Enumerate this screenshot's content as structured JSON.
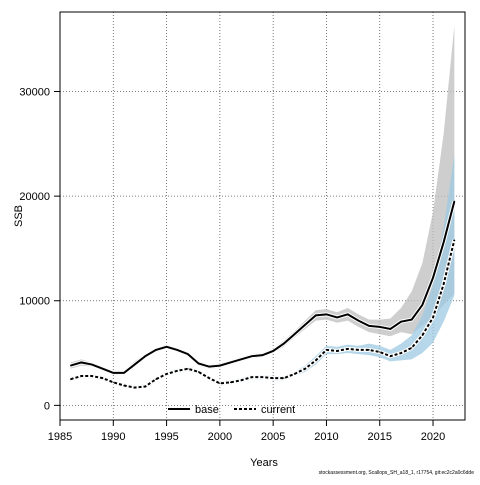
{
  "chart_data": {
    "type": "line",
    "xlabel": "Years",
    "ylabel": "SSB",
    "xlim": [
      1985,
      2023
    ],
    "ylim": [
      -1400,
      37600
    ],
    "x_ticks": [
      1985,
      1990,
      1995,
      2000,
      2005,
      2010,
      2015,
      2020
    ],
    "y_ticks": [
      0,
      10000,
      20000,
      30000
    ],
    "grid": true,
    "legend_position": "bottom",
    "x": [
      1986,
      1987,
      1988,
      1989,
      1990,
      1991,
      1992,
      1993,
      1994,
      1995,
      1996,
      1997,
      1998,
      1999,
      2000,
      2001,
      2002,
      2003,
      2004,
      2005,
      2006,
      2007,
      2008,
      2009,
      2010,
      2011,
      2012,
      2013,
      2014,
      2015,
      2016,
      2017,
      2018,
      2019,
      2020,
      2021,
      2022
    ],
    "series": [
      {
        "name": "base",
        "color": "#000000",
        "band_color": "#bebebe",
        "line_style": "solid",
        "values": [
          3800,
          4100,
          3900,
          3500,
          3100,
          3100,
          3900,
          4700,
          5300,
          5600,
          5300,
          4900,
          4000,
          3700,
          3800,
          4100,
          4400,
          4700,
          4800,
          5200,
          5900,
          6800,
          7700,
          8600,
          8700,
          8400,
          8700,
          8100,
          7600,
          7500,
          7300,
          8000,
          8200,
          9600,
          12200,
          15600,
          19500
        ],
        "lower": [
          3500,
          3800,
          3700,
          3300,
          2900,
          2900,
          3700,
          4500,
          5100,
          5400,
          5100,
          4700,
          3800,
          3500,
          3600,
          3900,
          4200,
          4500,
          4600,
          5000,
          5600,
          6500,
          7300,
          8100,
          8200,
          7900,
          8100,
          7500,
          7000,
          6800,
          6600,
          7000,
          6800,
          7600,
          8400,
          9600,
          10700
        ],
        "upper": [
          4100,
          4400,
          4100,
          3700,
          3300,
          3300,
          4200,
          4900,
          5500,
          5800,
          5500,
          5100,
          4200,
          3900,
          4000,
          4300,
          4600,
          4900,
          5000,
          5400,
          6200,
          7100,
          8100,
          9100,
          9200,
          8900,
          9300,
          8700,
          8200,
          8200,
          8300,
          9300,
          10900,
          13600,
          18500,
          26000,
          36300
        ]
      },
      {
        "name": "current",
        "color": "#000000",
        "band_color": "#9ecae1",
        "line_style": "dotted",
        "values": [
          2500,
          2800,
          2800,
          2600,
          2200,
          1900,
          1700,
          1800,
          2500,
          3000,
          3300,
          3500,
          3200,
          2600,
          2100,
          2200,
          2400,
          2700,
          2700,
          2600,
          2600,
          3000,
          3500,
          4300,
          5300,
          5200,
          5400,
          5300,
          5300,
          5100,
          4700,
          5000,
          5500,
          6700,
          8400,
          11600,
          15800
        ],
        "lower": [
          2300,
          2600,
          2600,
          2400,
          2000,
          1700,
          1600,
          1700,
          2300,
          2800,
          3100,
          3300,
          3000,
          2400,
          1900,
          2000,
          2200,
          2500,
          2500,
          2400,
          2400,
          2800,
          3200,
          3900,
          4900,
          4900,
          5000,
          4900,
          4800,
          4600,
          4200,
          4300,
          4400,
          5000,
          6000,
          8000,
          10500
        ],
        "upper": [
          2700,
          3000,
          3000,
          2800,
          2400,
          2100,
          1900,
          2000,
          2700,
          3200,
          3500,
          3700,
          3400,
          2800,
          2300,
          2400,
          2600,
          2900,
          2900,
          2800,
          2800,
          3200,
          3800,
          4700,
          5700,
          5600,
          5800,
          5700,
          5900,
          5700,
          5300,
          5900,
          6700,
          8600,
          11500,
          17000,
          24000
        ]
      }
    ]
  },
  "footer": {
    "source_text": "stockassessment.org, Scallops_SH_a18_1, r17754, git:ec2c2a0c6dde"
  }
}
